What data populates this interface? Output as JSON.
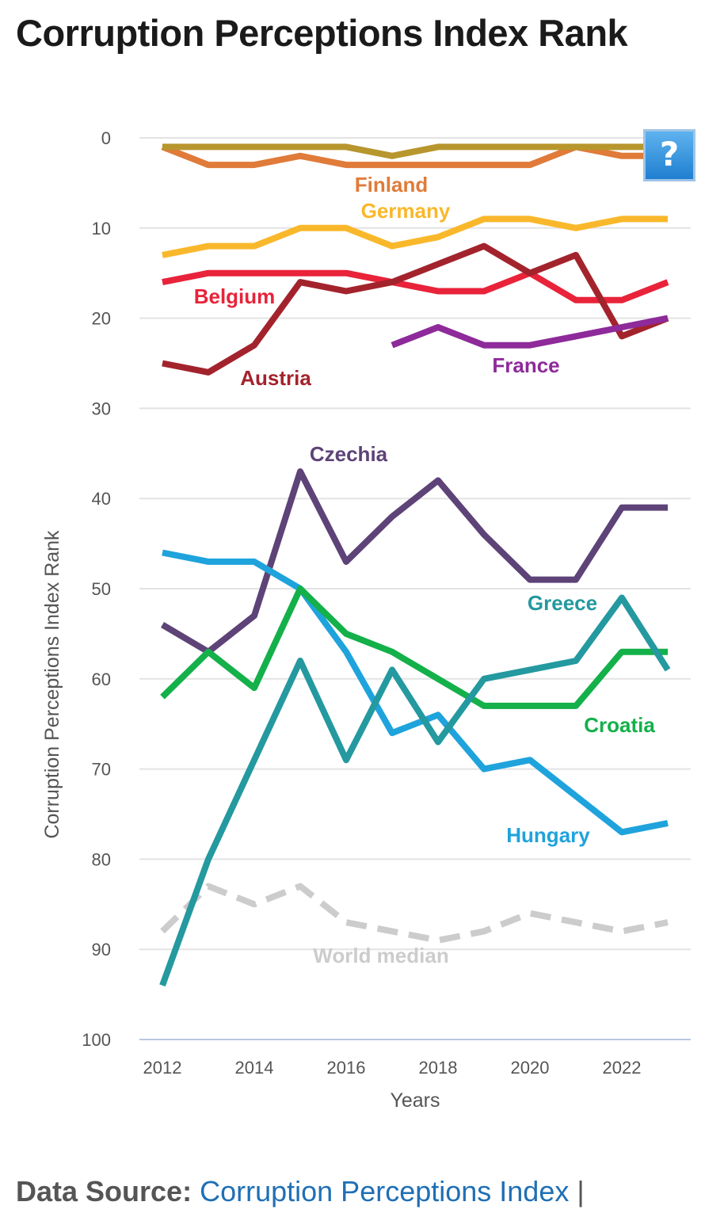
{
  "title": "Corruption Perceptions Index Rank",
  "help_label": "?",
  "source": {
    "label": "Data Source:",
    "link_text": "Corruption Perceptions Index",
    "separator": "|"
  },
  "chart_data": {
    "type": "line",
    "ylabel": "Corruption Perceptions Index Rank",
    "xlabel": "Years",
    "x": [
      2012,
      2013,
      2014,
      2015,
      2016,
      2017,
      2018,
      2019,
      2020,
      2021,
      2022,
      2023
    ],
    "x_ticks": [
      "2012",
      "2014",
      "2016",
      "2018",
      "2020",
      "2022"
    ],
    "y_ticks": [
      "0",
      "10",
      "20",
      "30",
      "40",
      "50",
      "60",
      "70",
      "80",
      "90",
      "100"
    ],
    "ylim": [
      0,
      100
    ],
    "y_inverted": true,
    "grid": true,
    "series": [
      {
        "name": "World median",
        "color": "#cccccc",
        "dashed": true,
        "values": [
          88,
          83,
          85,
          83,
          87,
          88,
          89,
          88,
          86,
          87,
          88,
          87
        ]
      },
      {
        "name": "Finland",
        "color": "#e07b39",
        "values": [
          1,
          3,
          3,
          2,
          3,
          3,
          3,
          3,
          3,
          1,
          2,
          2
        ]
      },
      {
        "name": "",
        "color": "#b8962e",
        "values": [
          1,
          1,
          1,
          1,
          1,
          2,
          1,
          1,
          1,
          1,
          1,
          1
        ]
      },
      {
        "name": "Germany",
        "color": "#f9b82b",
        "values": [
          13,
          12,
          12,
          10,
          10,
          12,
          11,
          9,
          9,
          10,
          9,
          9
        ]
      },
      {
        "name": "Belgium",
        "color": "#e8233a",
        "values": [
          16,
          15,
          15,
          15,
          15,
          16,
          17,
          17,
          15,
          18,
          18,
          16
        ]
      },
      {
        "name": "Austria",
        "color": "#a3232d",
        "values": [
          25,
          26,
          23,
          16,
          17,
          16,
          14,
          12,
          15,
          13,
          22,
          20
        ]
      },
      {
        "name": "France",
        "color": "#8e2a9a",
        "values": [
          null,
          null,
          null,
          null,
          null,
          23,
          21,
          23,
          23,
          22,
          21,
          20
        ]
      },
      {
        "name": "Czechia",
        "color": "#5d4377",
        "values": [
          54,
          57,
          53,
          37,
          47,
          42,
          38,
          44,
          49,
          49,
          41,
          41
        ]
      },
      {
        "name": "Hungary",
        "color": "#1fa3dc",
        "values": [
          46,
          47,
          47,
          50,
          57,
          66,
          64,
          70,
          69,
          73,
          77,
          76
        ]
      },
      {
        "name": "Croatia",
        "color": "#14b04a",
        "values": [
          62,
          57,
          61,
          50,
          55,
          57,
          60,
          63,
          63,
          63,
          57,
          57
        ]
      },
      {
        "name": "Greece",
        "color": "#24999f",
        "values": [
          94,
          80,
          69,
          58,
          69,
          59,
          67,
          60,
          59,
          58,
          51,
          59
        ]
      }
    ]
  }
}
